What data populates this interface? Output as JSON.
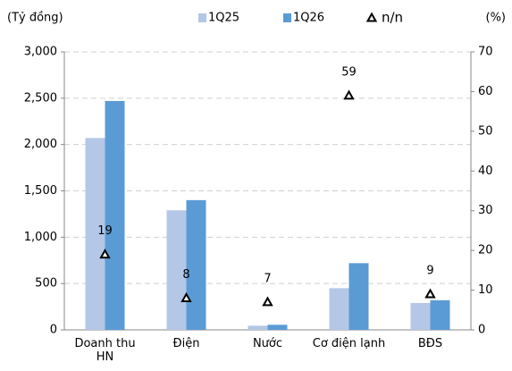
{
  "chart_data": {
    "type": "bar",
    "y_label": "(Tỷ đồng)",
    "y2_label": "(%)",
    "categories": [
      "Doanh thu HN",
      "Điện",
      "Nước",
      "Cơ điện lạnh",
      "BĐS"
    ],
    "series": [
      {
        "name": "1Q25",
        "color": "#b4c7e7",
        "values": [
          2070,
          1290,
          45,
          450,
          290
        ]
      },
      {
        "name": "1Q26",
        "color": "#5b9bd5",
        "values": [
          2470,
          1400,
          55,
          720,
          320
        ]
      },
      {
        "name": "n/n",
        "type": "scatter",
        "marker": "triangle",
        "color": "#000000",
        "axis": "y2",
        "values": [
          19,
          8,
          7,
          59,
          9
        ]
      }
    ],
    "ylim": [
      0,
      3000
    ],
    "yticks": [
      0,
      500,
      {
        "value": 1000,
        "label": "1,000"
      },
      {
        "value": 1500,
        "label": "1,500"
      },
      {
        "value": 2000,
        "label": "2,000"
      },
      {
        "value": 2500,
        "label": "2,500"
      },
      {
        "value": 3000,
        "label": "3,000"
      }
    ],
    "y2lim": [
      0,
      70
    ],
    "y2ticks": [
      0,
      10,
      20,
      30,
      40,
      50,
      60,
      70
    ],
    "grid": true
  }
}
